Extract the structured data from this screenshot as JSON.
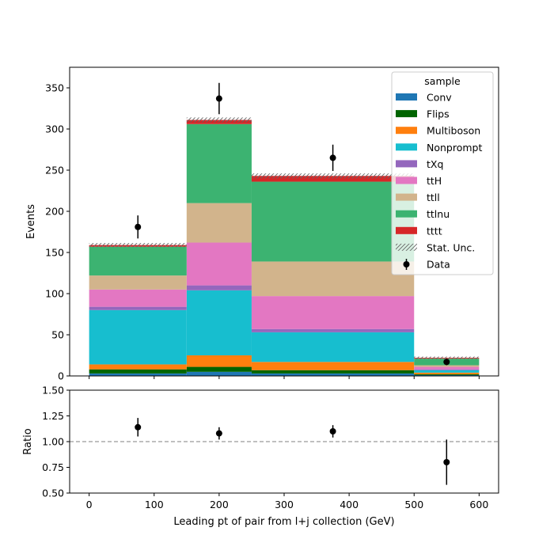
{
  "chart_data": [
    {
      "type": "bar",
      "stacked": true,
      "ylabel": "Events",
      "xlim": [
        -30,
        630
      ],
      "ylim": [
        0,
        375
      ],
      "yticks": [
        0,
        50,
        100,
        150,
        200,
        250,
        300,
        350
      ],
      "xticks": [
        0,
        100,
        200,
        300,
        400,
        500,
        600
      ],
      "bin_edges": [
        0,
        150,
        250,
        500,
        600
      ],
      "legend": {
        "title": "sample",
        "position": "top-right",
        "stat_label": "Stat. Unc.",
        "data_label": "Data"
      },
      "series": [
        {
          "name": "Conv",
          "color": "#1f77b4",
          "values": [
            3,
            5,
            3,
            1
          ]
        },
        {
          "name": "Flips",
          "color": "#006400",
          "values": [
            5,
            6,
            4,
            1
          ]
        },
        {
          "name": "Multiboson",
          "color": "#ff7f0e",
          "values": [
            6,
            14,
            10,
            2
          ]
        },
        {
          "name": "Nonprompt",
          "color": "#17becf",
          "values": [
            66,
            79,
            36,
            3
          ]
        },
        {
          "name": "tXq",
          "color": "#9467bd",
          "values": [
            4,
            6,
            4,
            1
          ]
        },
        {
          "name": "ttH",
          "color": "#e377c2",
          "values": [
            21,
            52,
            40,
            3
          ]
        },
        {
          "name": "ttll",
          "color": "#d2b48c",
          "values": [
            17,
            48,
            42,
            2
          ]
        },
        {
          "name": "ttlnu",
          "color": "#3cb371",
          "values": [
            35,
            96,
            97,
            8
          ]
        },
        {
          "name": "tttt",
          "color": "#d62728",
          "values": [
            2,
            5,
            7,
            1
          ]
        }
      ],
      "stat_unc": [
        2.5,
        3,
        3,
        1.5
      ],
      "data": {
        "x": [
          75,
          200,
          375,
          550
        ],
        "y": [
          181,
          337,
          265,
          17
        ],
        "yerr": [
          14,
          19,
          16,
          4
        ]
      }
    },
    {
      "type": "scatter",
      "ylabel": "Ratio",
      "xlabel": "Leading pt of pair from l+j collection (GeV)",
      "xlim": [
        -30,
        630
      ],
      "ylim": [
        0.5,
        1.5
      ],
      "yticks": [
        "0.50",
        "0.75",
        "1.00",
        "1.25",
        "1.50"
      ],
      "xticks": [
        "0",
        "100",
        "200",
        "300",
        "400",
        "500",
        "600"
      ],
      "reference_line": 1.0,
      "x": [
        75,
        200,
        375,
        550
      ],
      "y": [
        1.14,
        1.08,
        1.1,
        0.8
      ],
      "yerr": [
        0.09,
        0.06,
        0.06,
        0.22
      ]
    }
  ]
}
